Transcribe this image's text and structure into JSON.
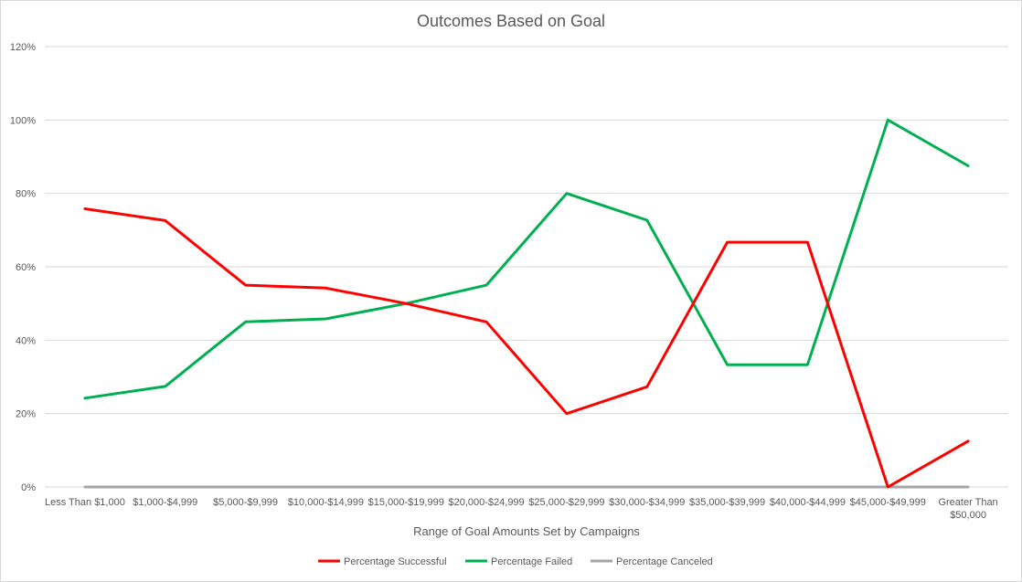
{
  "colors": {
    "successful": "#ff0000",
    "failed": "#00b050",
    "canceled": "#a5a5a5",
    "grid": "#d9d9d9",
    "text": "#595959"
  },
  "chart_data": {
    "type": "line",
    "title": "Outcomes Based on Goal",
    "xlabel": "Range of Goal Amounts Set by Campaigns",
    "ylabel": "",
    "ylim": [
      0,
      1.2
    ],
    "y_ticks": [
      0,
      0.2,
      0.4,
      0.6,
      0.8,
      1.0,
      1.2
    ],
    "y_tick_labels": [
      "0%",
      "20%",
      "40%",
      "60%",
      "80%",
      "100%",
      "120%"
    ],
    "grid": true,
    "legend_position": "bottom",
    "categories": [
      "Less Than $1,000",
      "$1,000-$4,999",
      "$5,000-$9,999",
      "$10,000-$14,999",
      "$15,000-$19,999",
      "$20,000-$24,999",
      "$25,000-$29,999",
      "$30,000-$34,999",
      "$35,000-$39,999",
      "$40,000-$44,999",
      "$45,000-$49,999",
      "Greater Than $50,000"
    ],
    "category_label_lines": [
      [
        "Less Than $1,000"
      ],
      [
        "$1,000-$4,999"
      ],
      [
        "$5,000-$9,999"
      ],
      [
        "$10,000-$14,999"
      ],
      [
        "$15,000-$19,999"
      ],
      [
        "$20,000-$24,999"
      ],
      [
        "$25,000-$29,999"
      ],
      [
        "$30,000-$34,999"
      ],
      [
        "$35,000-$39,999"
      ],
      [
        "$40,000-$44,999"
      ],
      [
        "$45,000-$49,999"
      ],
      [
        "Greater Than",
        "$50,000"
      ]
    ],
    "series": [
      {
        "name": "Percentage Successful",
        "color": "#ff0000",
        "values": [
          0.758,
          0.726,
          0.55,
          0.542,
          0.5,
          0.45,
          0.2,
          0.273,
          0.667,
          0.667,
          0.0,
          0.125
        ]
      },
      {
        "name": "Percentage Failed",
        "color": "#00b050",
        "values": [
          0.242,
          0.274,
          0.45,
          0.458,
          0.5,
          0.55,
          0.8,
          0.727,
          0.333,
          0.333,
          1.0,
          0.875
        ]
      },
      {
        "name": "Percentage Canceled",
        "color": "#a5a5a5",
        "values": [
          0,
          0,
          0,
          0,
          0,
          0,
          0,
          0,
          0,
          0,
          0,
          0
        ]
      }
    ]
  }
}
